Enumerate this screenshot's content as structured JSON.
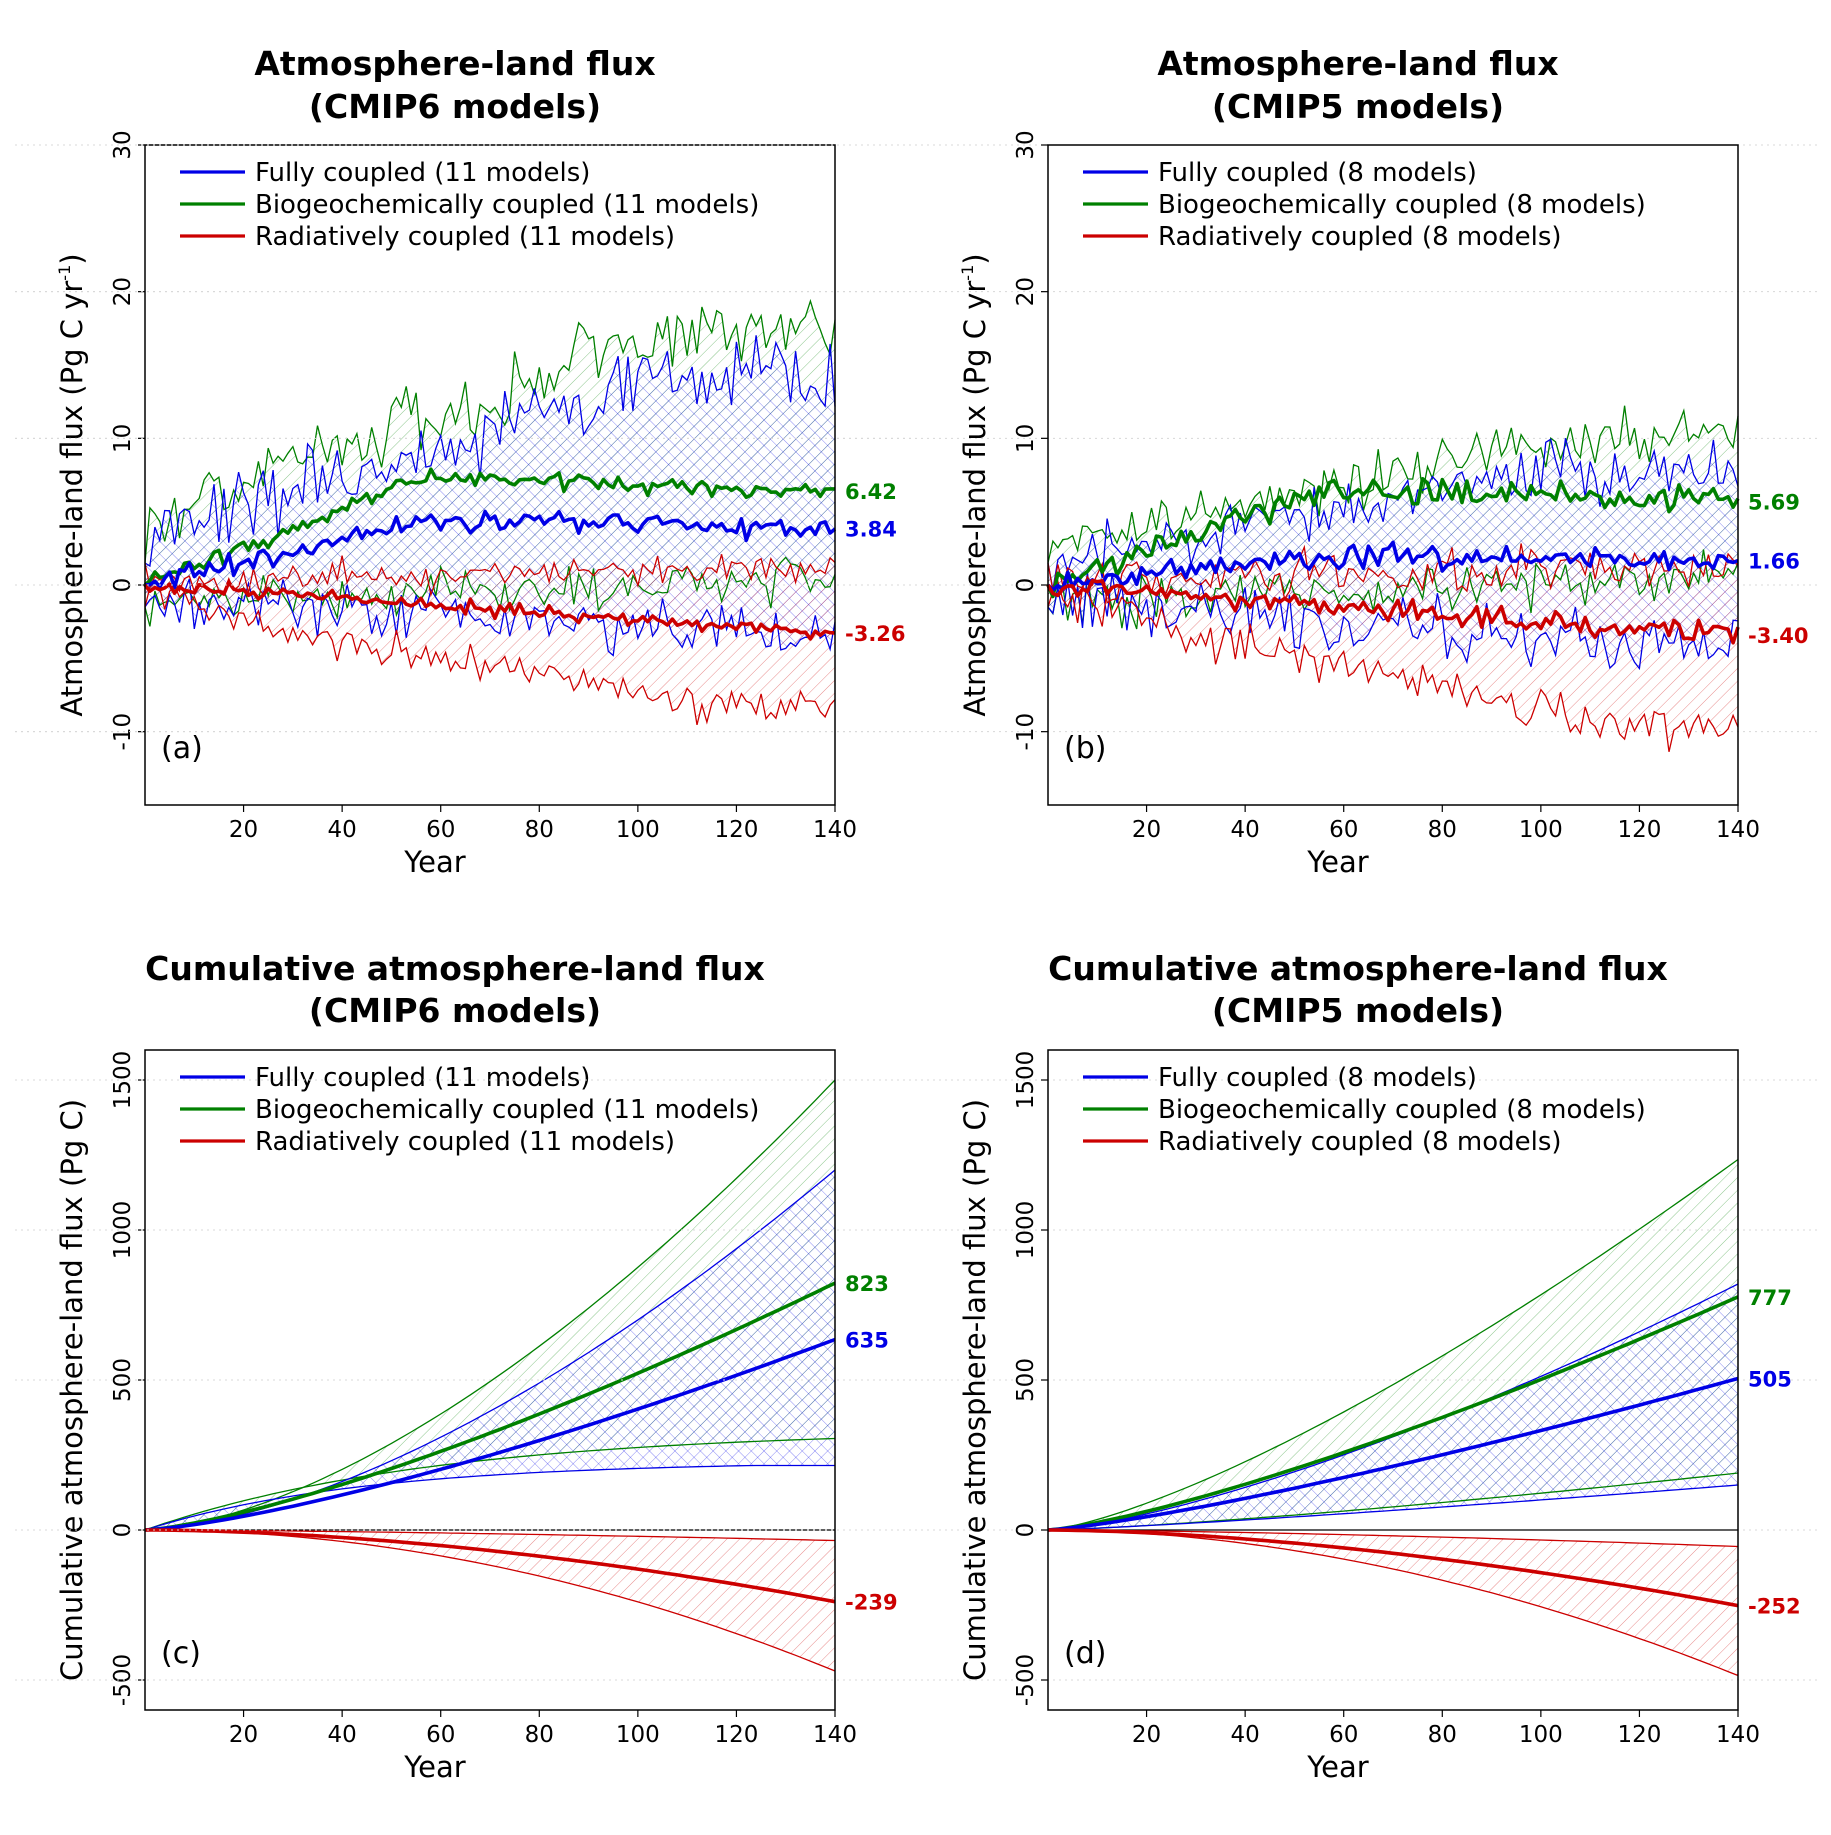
{
  "colors": {
    "fully": "#0000e6",
    "bgc": "#008000",
    "rad": "#cc0000"
  },
  "chart_data": [
    {
      "id": "a",
      "type": "line",
      "title": [
        "Atmosphere-land flux",
        "(CMIP6 models)"
      ],
      "ylabel_main": "Atmosphere-land flux (Pg C  yr",
      "ylabel_sup": "-1",
      "ylabel_close": ")",
      "xlabel": "Year",
      "panel_label": "(a)",
      "xlim": [
        0,
        140
      ],
      "ylim": [
        -15,
        30
      ],
      "xticks": [
        20,
        40,
        60,
        80,
        100,
        120,
        140
      ],
      "yticks": [
        -10,
        0,
        10,
        20,
        30
      ],
      "grid": true,
      "zero_line": false,
      "cumulative": false,
      "legend": "top-left",
      "series": [
        {
          "key": "bgc",
          "name": "Biogeochemically coupled (11 models)",
          "end_label": "6.42",
          "profile": "flux",
          "mean_end": 6.42,
          "upper_end": 17.5,
          "lower_end": 0.5,
          "noise": [
            0.55,
            2.0,
            1.4
          ],
          "seed": 7
        },
        {
          "key": "fully",
          "name": "Fully coupled (11 models)",
          "end_label": "3.84",
          "profile": "flux",
          "mean_end": 3.84,
          "upper_end": 14.5,
          "lower_end": -3.0,
          "noise": [
            0.55,
            2.2,
            1.6
          ],
          "seed": 13
        },
        {
          "key": "rad",
          "name": "Radiatively coupled (11 models)",
          "end_label": "-3.26",
          "profile": "linear",
          "mean_end": -3.26,
          "upper_end": 1.0,
          "lower_end": -6.8,
          "noise": [
            0.4,
            0.9,
            1.0
          ],
          "seed": 21
        }
      ]
    },
    {
      "id": "b",
      "type": "line",
      "title": [
        "Atmosphere-land flux",
        "(CMIP5 models)"
      ],
      "ylabel_main": "Atmosphere-land flux (Pg C  yr",
      "ylabel_sup": "-1",
      "ylabel_close": ")",
      "xlabel": "Year",
      "panel_label": "(b)",
      "xlim": [
        0,
        140
      ],
      "ylim": [
        -15,
        30
      ],
      "xticks": [
        20,
        40,
        60,
        80,
        100,
        120,
        140
      ],
      "yticks": [
        -10,
        0,
        10,
        20,
        30
      ],
      "grid": true,
      "zero_line": false,
      "cumulative": false,
      "legend": "top-left",
      "series": [
        {
          "key": "bgc",
          "name": "Biogeochemically coupled (8 models)",
          "end_label": "5.69",
          "profile": "flux",
          "mean_end": 5.69,
          "upper_end": 10.5,
          "lower_end": 0.5,
          "noise": [
            0.7,
            1.6,
            1.4
          ],
          "seed": 31
        },
        {
          "key": "fully",
          "name": "Fully coupled (8 models)",
          "end_label": "1.66",
          "profile": "flux",
          "mean_end": 1.66,
          "upper_end": 8.0,
          "lower_end": -4.0,
          "noise": [
            0.7,
            1.8,
            1.8
          ],
          "seed": 37
        },
        {
          "key": "rad",
          "name": "Radiatively coupled (8 models)",
          "end_label": "-3.40",
          "profile": "linear",
          "mean_end": -3.4,
          "upper_end": 1.0,
          "lower_end": -8.0,
          "noise": [
            0.6,
            1.3,
            1.3
          ],
          "seed": 43
        }
      ]
    },
    {
      "id": "c",
      "type": "line",
      "title": [
        "Cumulative atmosphere-land flux",
        "(CMIP6 models)"
      ],
      "ylabel_main": "Cumulative atmosphere-land flux (Pg C)",
      "ylabel_sup": "",
      "ylabel_close": "",
      "xlabel": "Year",
      "panel_label": "(c)",
      "xlim": [
        0,
        140
      ],
      "ylim": [
        -600,
        1600
      ],
      "xticks": [
        20,
        40,
        60,
        80,
        100,
        120,
        140
      ],
      "yticks": [
        -500,
        0,
        500,
        1000,
        1500
      ],
      "grid": true,
      "zero_line": true,
      "cumulative": true,
      "legend": "top-left",
      "series": [
        {
          "key": "bgc",
          "name": "Biogeochemically coupled (11 models)",
          "end_label": "823",
          "mean_end": 823,
          "upper_end": 1500,
          "lower_end": 305,
          "mean_shape": 1.35,
          "upper_shape": 1.6,
          "lower_shape": "saturating"
        },
        {
          "key": "fully",
          "name": "Fully coupled (11 models)",
          "end_label": "635",
          "mean_end": 635,
          "upper_end": 1200,
          "lower_end": 215,
          "mean_shape": 1.35,
          "upper_shape": 1.6,
          "lower_shape": "plateau"
        },
        {
          "key": "rad",
          "name": "Radiatively coupled (11 models)",
          "end_label": "-239",
          "mean_end": -239,
          "upper_end": -35,
          "lower_end": -470,
          "mean_shape": 1.8,
          "upper_shape": 1.5,
          "lower_shape": 2.0
        }
      ]
    },
    {
      "id": "d",
      "type": "line",
      "title": [
        "Cumulative atmosphere-land flux",
        "(CMIP5 models)"
      ],
      "ylabel_main": "Cumulative atmosphere-land flux (Pg C)",
      "ylabel_sup": "",
      "ylabel_close": "",
      "xlabel": "Year",
      "panel_label": "(d)",
      "xlim": [
        0,
        140
      ],
      "ylim": [
        -600,
        1600
      ],
      "xticks": [
        20,
        40,
        60,
        80,
        100,
        120,
        140
      ],
      "yticks": [
        -500,
        0,
        500,
        1000,
        1500
      ],
      "grid": true,
      "zero_line": true,
      "cumulative": true,
      "legend": "top-left",
      "series": [
        {
          "key": "bgc",
          "name": "Biogeochemically coupled (8 models)",
          "end_label": "777",
          "mean_end": 777,
          "upper_end": 1235,
          "lower_end": 190,
          "mean_shape": 1.3,
          "upper_shape": 1.35,
          "lower_shape": 1.3
        },
        {
          "key": "fully",
          "name": "Fully coupled (8 models)",
          "end_label": "505",
          "mean_end": 505,
          "upper_end": 820,
          "lower_end": 150,
          "mean_shape": 1.25,
          "upper_shape": 1.4,
          "lower_shape": 1.2
        },
        {
          "key": "rad",
          "name": "Radiatively coupled (8 models)",
          "end_label": "-252",
          "mean_end": -252,
          "upper_end": -55,
          "lower_end": -485,
          "mean_shape": 1.7,
          "upper_shape": 1.5,
          "lower_shape": 1.9
        }
      ]
    }
  ]
}
